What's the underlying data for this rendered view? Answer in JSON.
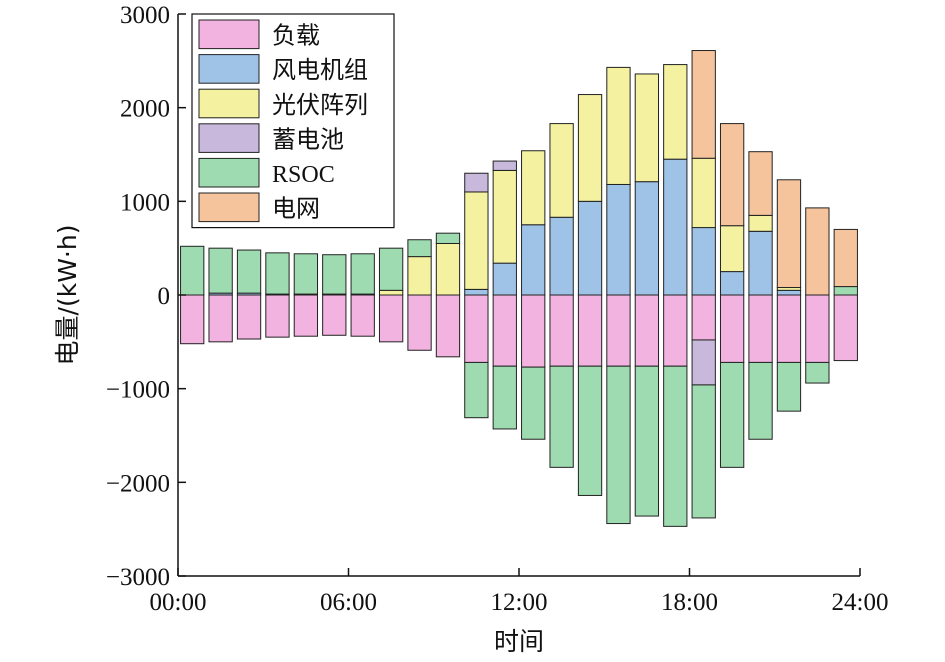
{
  "chart_data": {
    "type": "bar",
    "stacked": true,
    "title": "",
    "xlabel": "时间",
    "ylabel": "电量/(kW·h)",
    "ylim": [
      -3000,
      3000
    ],
    "xlim": [
      0,
      24
    ],
    "x_ticks": [
      "00:00",
      "06:00",
      "12:00",
      "18:00",
      "24:00"
    ],
    "y_ticks": [
      "3000",
      "2000",
      "1000",
      "0",
      "-1000",
      "-2000",
      "-3000"
    ],
    "grid": false,
    "legend_position": "top-left",
    "hours": [
      1,
      2,
      3,
      4,
      5,
      6,
      7,
      8,
      9,
      10,
      11,
      12,
      13,
      14,
      15,
      16,
      17,
      18,
      19,
      20,
      21,
      22,
      23,
      24
    ],
    "series": [
      {
        "name": "负载",
        "color": "#f2b3e0",
        "values": [
          -520,
          -500,
          -470,
          -450,
          -440,
          -430,
          -440,
          -500,
          -590,
          -660,
          -720,
          -760,
          -770,
          -760,
          -760,
          -760,
          -760,
          -760,
          -480,
          -720,
          -720,
          -720,
          -720,
          -700
        ]
      },
      {
        "name": "风电机组",
        "color": "#9ec3e6",
        "values": [
          0,
          20,
          20,
          10,
          10,
          10,
          10,
          0,
          0,
          0,
          60,
          340,
          750,
          830,
          1000,
          1180,
          1210,
          1450,
          720,
          250,
          680,
          50,
          0,
          0
        ]
      },
      {
        "name": "光伏阵列",
        "color": "#f4f1a0",
        "values": [
          0,
          0,
          0,
          0,
          0,
          0,
          0,
          50,
          410,
          550,
          1040,
          990,
          790,
          1000,
          1140,
          1250,
          1150,
          1010,
          740,
          490,
          170,
          30,
          0,
          0
        ]
      },
      {
        "name": "蓄电池",
        "color": "#c7b8dc",
        "values": [
          0,
          0,
          0,
          0,
          0,
          0,
          0,
          0,
          0,
          0,
          200,
          100,
          0,
          0,
          0,
          0,
          0,
          0,
          -480,
          0,
          0,
          0,
          0,
          0
        ]
      },
      {
        "name": "RSOC",
        "color": "#9fdbb0",
        "values": [
          520,
          480,
          460,
          440,
          430,
          420,
          430,
          450,
          180,
          110,
          -590,
          -670,
          -770,
          -1080,
          -1380,
          -1680,
          -1600,
          -1710,
          -1420,
          -1120,
          -820,
          -520,
          -220,
          90
        ]
      },
      {
        "name": "电网",
        "color": "#f6c49c",
        "values": [
          0,
          0,
          0,
          0,
          0,
          0,
          0,
          0,
          0,
          0,
          0,
          0,
          0,
          0,
          0,
          0,
          0,
          0,
          1150,
          1090,
          680,
          1150,
          930,
          610
        ]
      }
    ]
  }
}
